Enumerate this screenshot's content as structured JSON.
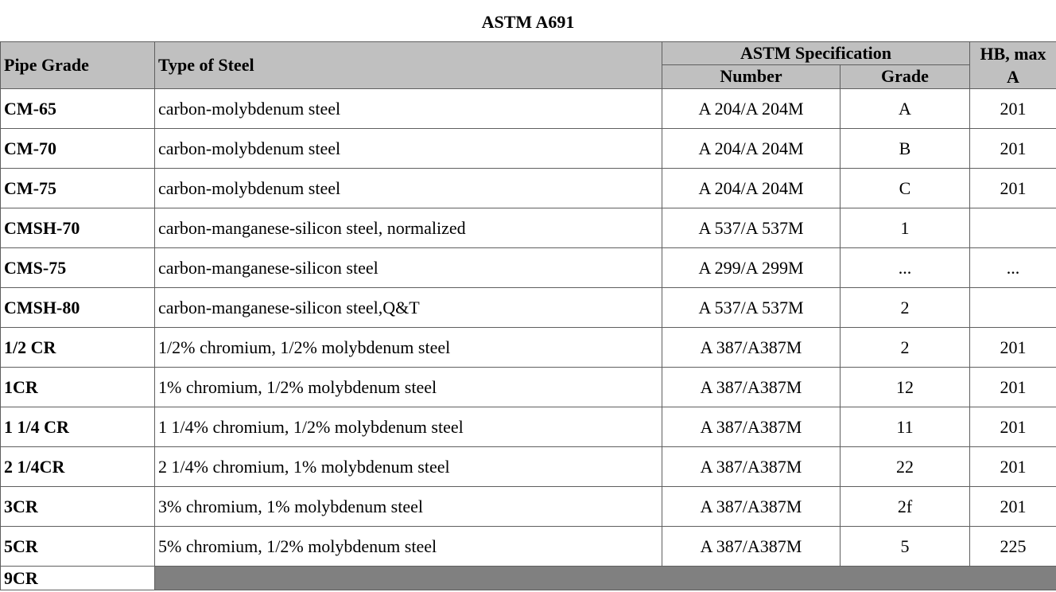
{
  "title": "ASTM A691",
  "headers": {
    "pipe_grade": "Pipe Grade",
    "type_of_steel": "Type of Steel",
    "astm_spec": "ASTM Specification",
    "number": "Number",
    "grade": "Grade",
    "hb_max": "HB, max",
    "hb_note": "A"
  },
  "rows": [
    {
      "pipe_grade": "CM-65",
      "type": "carbon-molybdenum steel",
      "number": "A 204/A 204M",
      "grade": "A",
      "hb": "201"
    },
    {
      "pipe_grade": "CM-70",
      "type": "carbon-molybdenum steel",
      "number": "A 204/A 204M",
      "grade": "B",
      "hb": "201"
    },
    {
      "pipe_grade": "CM-75",
      "type": "carbon-molybdenum steel",
      "number": "A 204/A 204M",
      "grade": "C",
      "hb": "201"
    },
    {
      "pipe_grade": "CMSH-70",
      "type": "carbon-manganese-silicon steel, normalized",
      "number": "A 537/A 537M",
      "grade": "1",
      "hb": ""
    },
    {
      "pipe_grade": "CMS-75",
      "type": "carbon-manganese-silicon steel",
      "number": "A 299/A 299M",
      "grade": "...",
      "hb": "..."
    },
    {
      "pipe_grade": "CMSH-80",
      "type": "carbon-manganese-silicon steel,Q&T",
      "number": "A 537/A 537M",
      "grade": "2",
      "hb": ""
    },
    {
      "pipe_grade": "1/2 CR",
      "type": "1/2% chromium, 1/2% molybdenum steel",
      "number": "A 387/A387M",
      "grade": "2",
      "hb": "201"
    },
    {
      "pipe_grade": "1CR",
      "type": "1% chromium, 1/2% molybdenum steel",
      "number": "A 387/A387M",
      "grade": "12",
      "hb": "201"
    },
    {
      "pipe_grade": "1 1/4 CR",
      "type": "1 1/4% chromium, 1/2% molybdenum steel",
      "number": "A 387/A387M",
      "grade": "11",
      "hb": "201"
    },
    {
      "pipe_grade": "2 1/4CR",
      "type": "2 1/4% chromium, 1% molybdenum steel",
      "number": "A 387/A387M",
      "grade": "22",
      "hb": "201"
    },
    {
      "pipe_grade": "3CR",
      "type": "3% chromium, 1% molybdenum steel",
      "number": "A 387/A387M",
      "grade": "2f",
      "hb": "201"
    },
    {
      "pipe_grade": "5CR",
      "type": "5% chromium, 1/2% molybdenum steel",
      "number": "A 387/A387M",
      "grade": "5",
      "hb": "225"
    },
    {
      "pipe_grade": "9CR"
    }
  ],
  "colors": {
    "header_bg": "#c0c0c0",
    "shaded_cell": "#808080",
    "border": "#5f5f5f"
  }
}
